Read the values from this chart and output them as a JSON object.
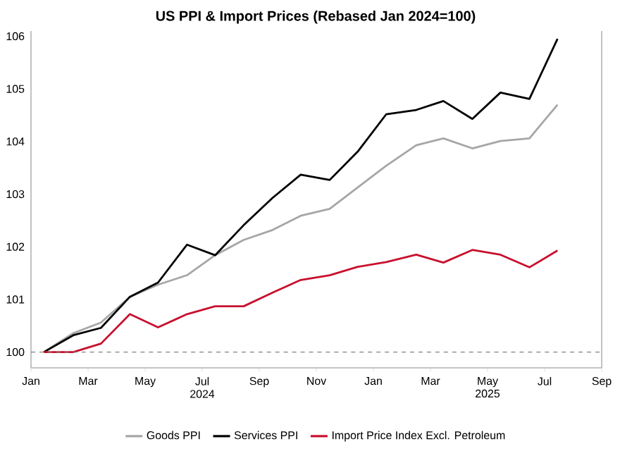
{
  "chart_data": {
    "type": "line",
    "title": "US PPI & Import Prices (Rebased Jan 2024=100)",
    "x": [
      "2024-01-15",
      "2024-02-15",
      "2024-03-15",
      "2024-04-15",
      "2024-05-15",
      "2024-06-15",
      "2024-07-15",
      "2024-08-15",
      "2024-09-15",
      "2024-10-15",
      "2024-11-15",
      "2024-12-15",
      "2025-01-15",
      "2025-02-15",
      "2025-03-15",
      "2025-04-15",
      "2025-05-15",
      "2025-06-15",
      "2025-07-15"
    ],
    "series": [
      {
        "name": "Goods PPI",
        "color": "#a6a6a6",
        "values": [
          100,
          100.36,
          100.56,
          101.05,
          101.28,
          101.46,
          101.84,
          102.13,
          102.32,
          102.59,
          102.72,
          103.13,
          103.54,
          103.93,
          104.06,
          103.87,
          104.01,
          104.06,
          104.7
        ]
      },
      {
        "name": "Services PPI",
        "color": "#000000",
        "values": [
          100,
          100.32,
          100.46,
          101.05,
          101.32,
          102.04,
          101.84,
          102.41,
          102.93,
          103.37,
          103.27,
          103.81,
          104.52,
          104.6,
          104.77,
          104.43,
          104.93,
          104.81,
          105.95
        ]
      },
      {
        "name": "Import Price Index Excl. Petroleum",
        "color": "#c8102e",
        "values": [
          100,
          100,
          100.16,
          100.72,
          100.47,
          100.72,
          100.87,
          100.87,
          101.13,
          101.37,
          101.46,
          101.62,
          101.71,
          101.85,
          101.7,
          101.94,
          101.85,
          101.61,
          101.93
        ]
      }
    ],
    "xlim": [
      "2024-01-01",
      "2025-09-01"
    ],
    "xticks": [
      {
        "value": "2024-01-01",
        "label": "Jan"
      },
      {
        "value": "2024-03-01",
        "label": "Mar"
      },
      {
        "value": "2024-05-01",
        "label": "May"
      },
      {
        "value": "2024-07-01",
        "label": "Jul 2024"
      },
      {
        "value": "2024-09-01",
        "label": "Sep"
      },
      {
        "value": "2024-11-01",
        "label": "Nov"
      },
      {
        "value": "2025-01-01",
        "label": "Jan"
      },
      {
        "value": "2025-03-01",
        "label": "Mar"
      },
      {
        "value": "2025-05-01",
        "label": "May 2025"
      },
      {
        "value": "2025-07-01",
        "label": "Jul"
      },
      {
        "value": "2025-09-01",
        "label": "Sep"
      }
    ],
    "ylim": [
      99.7,
      106.1
    ],
    "yticks": [
      100,
      101,
      102,
      103,
      104,
      105,
      106
    ],
    "ref_lines": [
      {
        "axis": "y",
        "value": 100,
        "color": "#808080",
        "line_style": "dashed"
      }
    ],
    "legend": "bottom"
  }
}
